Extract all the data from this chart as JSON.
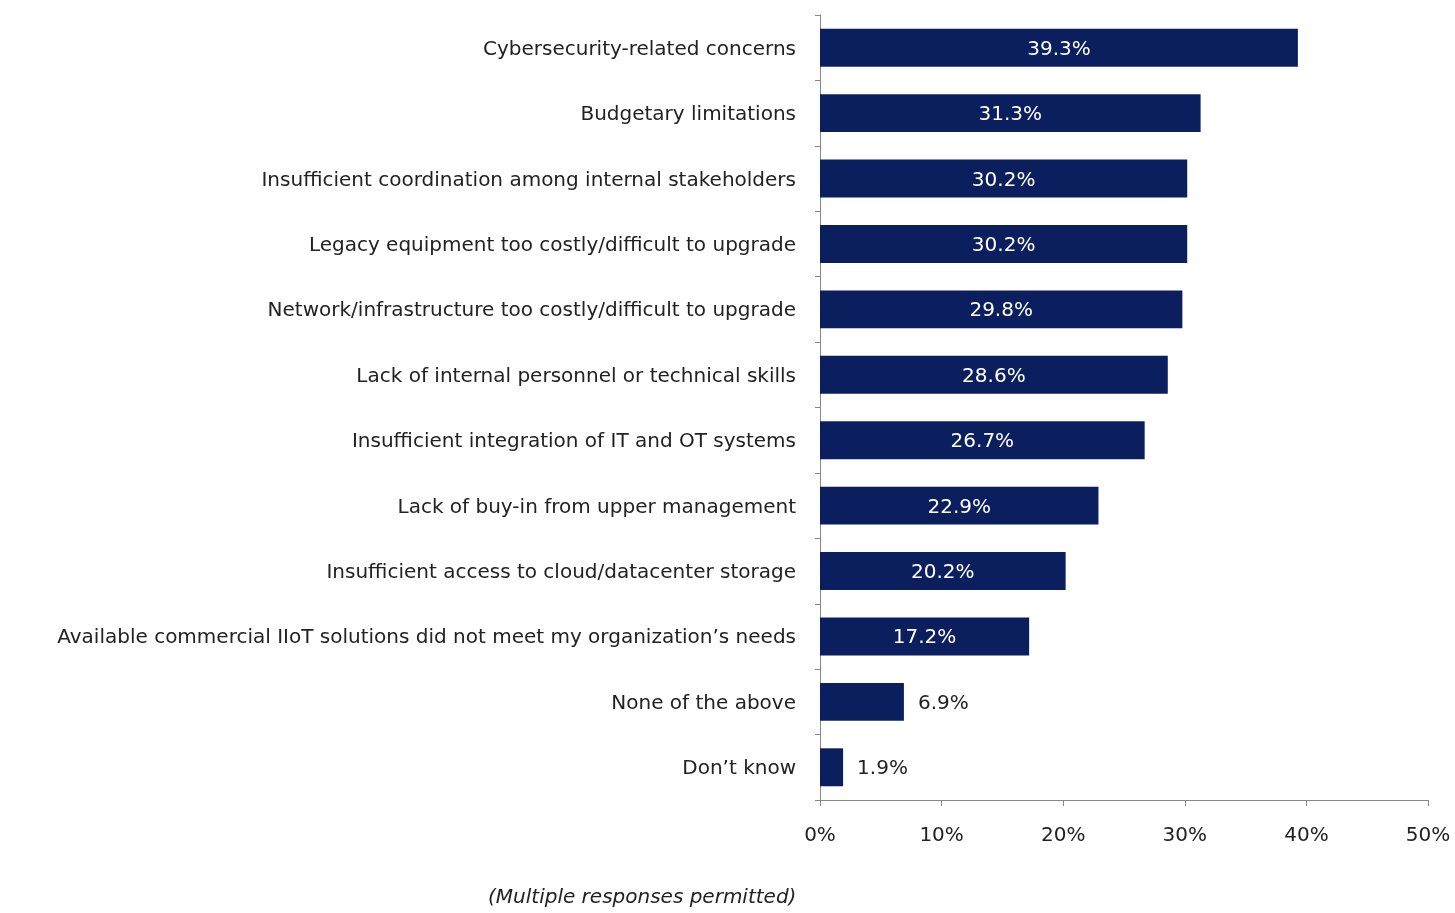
{
  "chart_data": {
    "type": "bar",
    "orientation": "horizontal",
    "categories": [
      "Cybersecurity-related concerns",
      "Budgetary limitations",
      "Insufficient coordination among internal stakeholders",
      "Legacy equipment too costly/difficult to upgrade",
      "Network/infrastructure too costly/difficult to upgrade",
      "Lack of internal personnel or technical skills",
      "Insufficient integration of IT and OT systems",
      "Lack of buy-in from upper management",
      "Insufficient access to cloud/datacenter storage",
      "Available commercial IIoT solutions did not meet my organization’s needs",
      "None of the above",
      "Don’t know"
    ],
    "values": [
      39.3,
      31.3,
      30.2,
      30.2,
      29.8,
      28.6,
      26.7,
      22.9,
      20.2,
      17.2,
      6.9,
      1.9
    ],
    "value_labels": [
      "39.3%",
      "31.3%",
      "30.2%",
      "30.2%",
      "29.8%",
      "28.6%",
      "26.7%",
      "22.9%",
      "20.2%",
      "17.2%",
      "6.9%",
      "1.9%"
    ],
    "color": "#0b1f5e",
    "xlim": [
      0,
      50
    ],
    "xticks": [
      {
        "value": 0,
        "label": "0%"
      },
      {
        "value": 10,
        "label": "10%"
      },
      {
        "value": 20,
        "label": "20%"
      },
      {
        "value": 30,
        "label": "30%"
      },
      {
        "value": 40,
        "label": "40%"
      },
      {
        "value": 50,
        "label": "50%"
      }
    ],
    "grid": false,
    "annotations": [
      "(Multiple responses permitted)"
    ]
  }
}
